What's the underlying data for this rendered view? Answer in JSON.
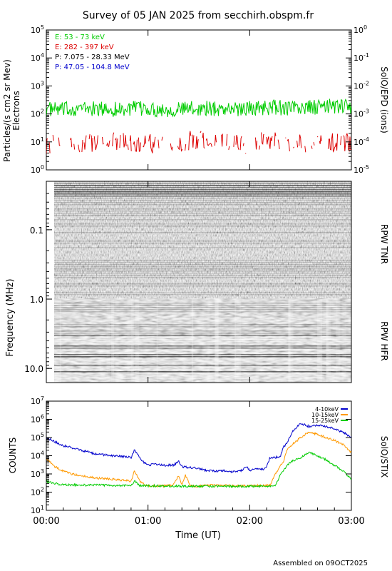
{
  "header": {
    "title": "Survey of 05 JAN 2025 from secchirh.obspm.fr",
    "footer": "Assembled on 09OCT2025"
  },
  "chart_data": [
    {
      "panel": "epd",
      "type": "line",
      "ylabel": "Particles/(s cm2 sr Mev)",
      "ylabel2": "Electrons",
      "right_label": "SolO/EPD (ions)",
      "y_scale": "log",
      "ylim": [
        1,
        100000
      ],
      "right_ylim": [
        1e-05,
        1
      ],
      "y_ticks": [
        {
          "exp": "0",
          "v": 1
        },
        {
          "exp": "1",
          "v": 10
        },
        {
          "exp": "2",
          "v": 100
        },
        {
          "exp": "3",
          "v": 1000
        },
        {
          "exp": "4",
          "v": 10000
        },
        {
          "exp": "5",
          "v": 100000
        }
      ],
      "right_ticks": [
        {
          "exp": "-5",
          "v": 1e-05
        },
        {
          "exp": "-4",
          "v": 0.0001
        },
        {
          "exp": "-3",
          "v": 0.001
        },
        {
          "exp": "-2",
          "v": 0.01
        },
        {
          "exp": "-1",
          "v": 0.1
        },
        {
          "exp": "0",
          "v": 1
        }
      ],
      "legend": [
        {
          "label": "E: 53 - 73 keV",
          "color": "#00cc00"
        },
        {
          "label": "E: 282 - 397 keV",
          "color": "#dd0000"
        },
        {
          "label": "P: 7.075 - 28.33 MeV",
          "color": "#000000"
        },
        {
          "label": "P: 47.05 - 104.8 MeV",
          "color": "#0000cc"
        }
      ],
      "series": [
        {
          "name": "E: 53 - 73 keV",
          "color": "#00cc00",
          "x": [
            0,
            10,
            20,
            30,
            40,
            50,
            60,
            70,
            80,
            90,
            100,
            110,
            120,
            130,
            140,
            150,
            160,
            170,
            180
          ],
          "y": [
            150,
            140,
            160,
            150,
            145,
            155,
            150,
            140,
            150,
            160,
            155,
            150,
            160,
            170,
            165,
            160,
            175,
            190,
            180
          ]
        },
        {
          "name": "E: 282 - 397 keV",
          "color": "#dd0000",
          "x": [
            0,
            10,
            20,
            30,
            40,
            50,
            60,
            70,
            80,
            90,
            100,
            110,
            120,
            130,
            140,
            150,
            160,
            170,
            180
          ],
          "y": [
            8,
            10,
            9,
            8,
            11,
            10,
            9,
            8,
            10,
            12,
            9,
            10,
            8,
            11,
            10,
            9,
            10,
            9,
            10
          ]
        }
      ]
    },
    {
      "panel": "rpw",
      "type": "heatmap",
      "ylabel": "Frequency (MHz)",
      "y_scale": "log",
      "y_reversed": true,
      "ylim": [
        0.02,
        16
      ],
      "y_ticks": [
        {
          "label": "0.1",
          "v": 0.1
        },
        {
          "label": "1.0",
          "v": 1
        },
        {
          "label": "10.0",
          "v": 10
        }
      ],
      "band_split_mhz": 1.0,
      "right_labels": [
        "RPW TNR",
        "RPW HFR"
      ],
      "colormap": "grayscale"
    },
    {
      "panel": "stix",
      "type": "line",
      "ylabel": "COUNTS",
      "xlabel": "Time (UT)",
      "right_label": "SolO/STIX",
      "y_scale": "log",
      "ylim": [
        10,
        10000000
      ],
      "xlim": [
        0,
        180
      ],
      "y_ticks": [
        {
          "exp": "1",
          "v": 10
        },
        {
          "exp": "2",
          "v": 100
        },
        {
          "exp": "3",
          "v": 1000
        },
        {
          "exp": "4",
          "v": 10000
        },
        {
          "exp": "5",
          "v": 100000
        },
        {
          "exp": "6",
          "v": 1000000
        },
        {
          "exp": "7",
          "v": 10000000
        }
      ],
      "x_ticks": [
        {
          "label": "00:00",
          "v": 0
        },
        {
          "label": "01:00",
          "v": 60
        },
        {
          "label": "02:00",
          "v": 120
        },
        {
          "label": "03:00",
          "v": 180
        }
      ],
      "legend": [
        {
          "label": "4-10keV",
          "color": "#0000cc"
        },
        {
          "label": "10-15keV",
          "color": "#ff9900"
        },
        {
          "label": "15-25keV",
          "color": "#00cc00"
        }
      ],
      "series": [
        {
          "name": "4-10keV",
          "color": "#0000cc",
          "x": [
            0,
            5,
            10,
            15,
            20,
            25,
            30,
            35,
            40,
            45,
            50,
            52,
            55,
            58,
            60,
            65,
            70,
            75,
            78,
            80,
            85,
            90,
            95,
            100,
            105,
            110,
            115,
            118,
            120,
            125,
            128,
            130,
            132,
            135,
            138,
            140,
            142,
            145,
            150,
            155,
            160,
            165,
            170,
            175,
            180
          ],
          "y": [
            100000,
            60000,
            35000,
            28000,
            20000,
            16000,
            12000,
            11000,
            10000,
            9000,
            8000,
            20000,
            8000,
            4000,
            3000,
            3500,
            3000,
            3000,
            5000,
            2500,
            2200,
            2000,
            1500,
            1400,
            1500,
            1300,
            1500,
            2500,
            1600,
            2000,
            1800,
            2500,
            8000,
            8000,
            9000,
            30000,
            50000,
            200000,
            600000,
            400000,
            500000,
            400000,
            300000,
            200000,
            100000
          ]
        },
        {
          "name": "10-15keV",
          "color": "#ff9900",
          "x": [
            0,
            5,
            10,
            15,
            20,
            25,
            30,
            35,
            40,
            45,
            50,
            52,
            55,
            58,
            60,
            65,
            70,
            75,
            78,
            80,
            82,
            85,
            90,
            95,
            100,
            105,
            110,
            115,
            118,
            120,
            125,
            128,
            130,
            132,
            135,
            138,
            140,
            142,
            145,
            150,
            155,
            160,
            165,
            170,
            175,
            180
          ],
          "y": [
            7000,
            2500,
            1400,
            1000,
            800,
            700,
            600,
            550,
            500,
            450,
            400,
            1500,
            400,
            250,
            230,
            220,
            220,
            250,
            800,
            250,
            900,
            220,
            210,
            250,
            230,
            240,
            230,
            220,
            220,
            220,
            230,
            230,
            230,
            240,
            900,
            3000,
            5000,
            20000,
            40000,
            100000,
            200000,
            150000,
            100000,
            70000,
            40000,
            15000
          ]
        },
        {
          "name": "15-25keV",
          "color": "#00cc00",
          "x": [
            0,
            5,
            10,
            15,
            20,
            25,
            30,
            35,
            40,
            45,
            50,
            52,
            55,
            60,
            70,
            80,
            90,
            100,
            110,
            120,
            130,
            132,
            135,
            138,
            140,
            142,
            145,
            150,
            155,
            160,
            165,
            170,
            175,
            180
          ],
          "y": [
            400,
            300,
            250,
            250,
            250,
            240,
            240,
            240,
            240,
            230,
            230,
            400,
            230,
            220,
            220,
            210,
            210,
            210,
            210,
            210,
            210,
            210,
            220,
            800,
            1500,
            3000,
            5000,
            8000,
            15000,
            10000,
            6000,
            3000,
            1500,
            500
          ]
        }
      ]
    }
  ]
}
